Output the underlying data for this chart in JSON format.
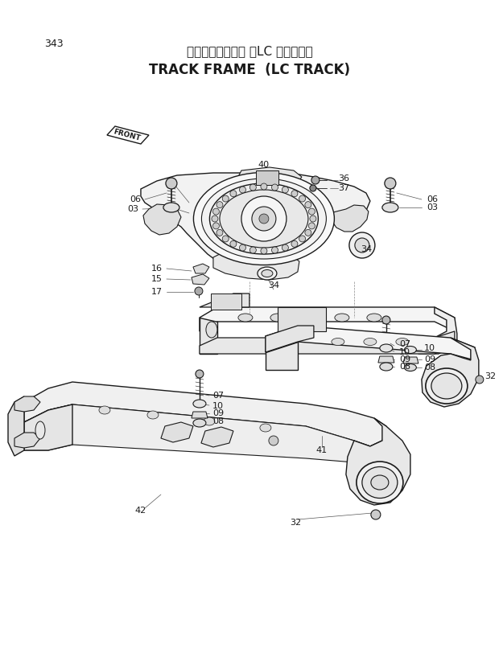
{
  "page_number": "343",
  "title_japanese": "トラックフレーム （LC トラック）",
  "title_english": "TRACK FRAME  (LC TRACK)",
  "bg": "#ffffff",
  "lc": "#1a1a1a",
  "fig_width": 6.2,
  "fig_height": 8.27,
  "dpi": 100
}
